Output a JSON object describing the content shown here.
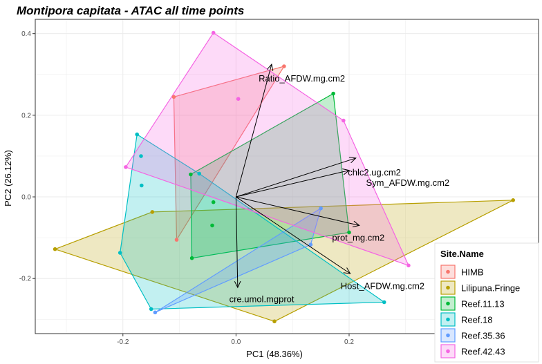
{
  "chart_data": {
    "type": "scatter",
    "title": "Montipora capitata - ATAC all time points",
    "xlabel": "PC1 (48.36%)",
    "ylabel": "PC2 (26.12%)",
    "xlim": [
      -0.355,
      0.535
    ],
    "ylim": [
      -0.335,
      0.435
    ],
    "x_ticks": [
      -0.2,
      0.0,
      0.2
    ],
    "x_tick_labels": [
      "-0.2",
      "0.0",
      "0.2"
    ],
    "y_ticks": [
      -0.2,
      0.0,
      0.2,
      0.4
    ],
    "y_tick_labels": [
      "-0.2",
      "0.0",
      "0.2",
      "0.4"
    ],
    "grid": true,
    "legend": {
      "title": "Site.Name",
      "position": "right"
    },
    "series": [
      {
        "name": "HIMB",
        "color": "#F8766D",
        "points": [
          [
            0.085,
            0.32
          ],
          [
            -0.11,
            0.245
          ],
          [
            -0.105,
            -0.105
          ]
        ]
      },
      {
        "name": "Lilipuna.Fringe",
        "color": "#B79F00",
        "points": [
          [
            0.49,
            -0.008
          ],
          [
            -0.32,
            -0.128
          ],
          [
            0.068,
            -0.305
          ],
          [
            -0.148,
            -0.037
          ]
        ]
      },
      {
        "name": "Reef.11.13",
        "color": "#00BA38",
        "points": [
          [
            0.172,
            0.253
          ],
          [
            -0.08,
            0.055
          ],
          [
            -0.078,
            -0.15
          ],
          [
            0.2,
            -0.087
          ],
          [
            -0.04,
            -0.013
          ],
          [
            -0.042,
            -0.07
          ]
        ]
      },
      {
        "name": "Reef.18",
        "color": "#00BFC4",
        "points": [
          [
            -0.175,
            0.153
          ],
          [
            -0.205,
            -0.137
          ],
          [
            -0.15,
            -0.275
          ],
          [
            0.262,
            -0.258
          ],
          [
            -0.168,
            0.1
          ],
          [
            -0.167,
            0.028
          ],
          [
            -0.065,
            0.057
          ]
        ]
      },
      {
        "name": "Reef.35.36",
        "color": "#619CFF",
        "points": [
          [
            0.15,
            -0.028
          ],
          [
            -0.143,
            -0.283
          ],
          [
            0.132,
            -0.117
          ]
        ]
      },
      {
        "name": "Reef.42.43",
        "color": "#F564E3",
        "points": [
          [
            -0.04,
            0.402
          ],
          [
            0.19,
            0.187
          ],
          [
            0.305,
            -0.168
          ],
          [
            -0.195,
            0.073
          ],
          [
            0.004,
            0.24
          ]
        ]
      }
    ],
    "loadings": [
      {
        "name": "Ratio_AFDW.mg.cm2",
        "x": 0.063,
        "y": 0.325,
        "label_x": 0.04,
        "label_y": 0.29
      },
      {
        "name": "chlc2.ug.cm2",
        "x": 0.2,
        "y": 0.065,
        "label_x": 0.198,
        "label_y": 0.06
      },
      {
        "name": "Sym_AFDW.mg.cm2",
        "x": 0.212,
        "y": 0.095,
        "label_x": 0.23,
        "label_y": 0.035
      },
      {
        "name": "prot_mg.cm2",
        "x": 0.218,
        "y": -0.07,
        "label_x": 0.17,
        "label_y": -0.1
      },
      {
        "name": "Host_AFDW.mg.cm2",
        "x": 0.202,
        "y": -0.188,
        "label_x": 0.185,
        "label_y": -0.218
      },
      {
        "name": "cre.umol.mgprot",
        "x": 0.003,
        "y": -0.222,
        "label_x": -0.012,
        "label_y": -0.25
      }
    ]
  }
}
